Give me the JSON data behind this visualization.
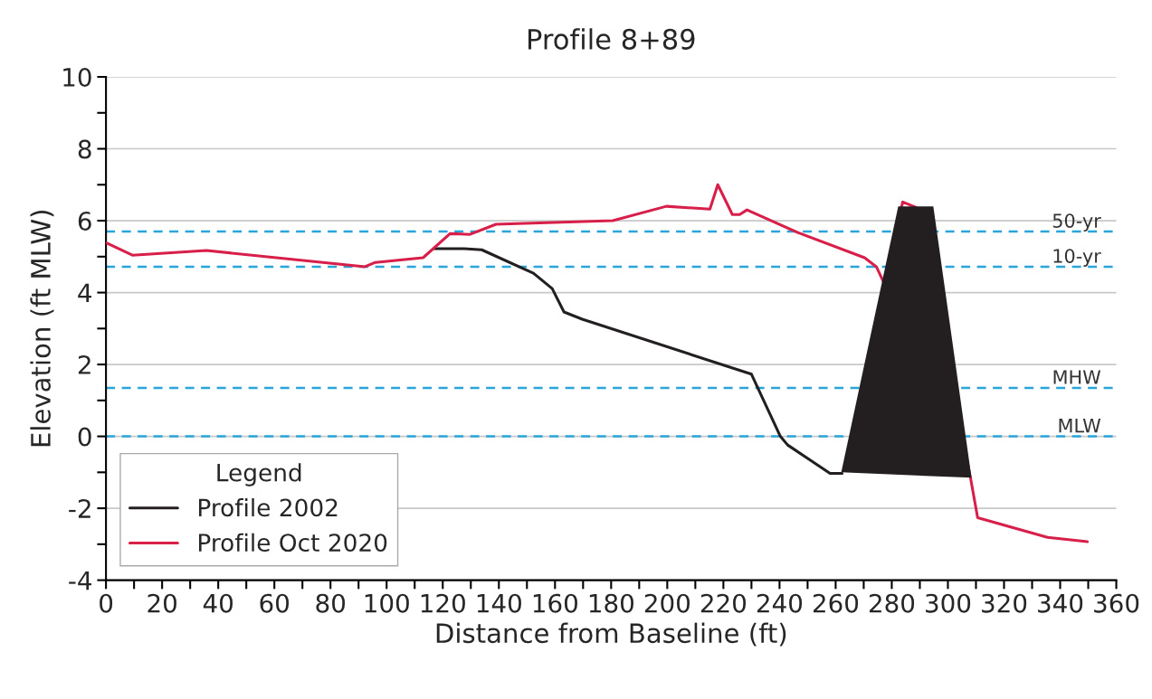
{
  "chart_data": {
    "type": "line",
    "title": "Profile 8+89",
    "xlabel": "Distance from Baseline (ft)",
    "ylabel": "Elevation (ft MLW)",
    "xlim": [
      0,
      360
    ],
    "ylim": [
      -4,
      10
    ],
    "xticks": [
      0,
      {
        "value": 10,
        "label": null
      },
      20,
      {
        "value": 30,
        "label": null
      },
      40,
      {
        "value": 50,
        "label": null
      },
      60,
      {
        "value": 70,
        "label": null
      },
      80,
      {
        "value": 90,
        "label": null
      },
      100,
      {
        "value": 110,
        "label": null
      },
      120,
      {
        "value": 130,
        "label": null
      },
      140,
      {
        "value": 150,
        "label": null
      },
      160,
      {
        "value": 170,
        "label": null
      },
      180,
      {
        "value": 190,
        "label": null
      },
      200,
      {
        "value": 210,
        "label": null
      },
      220,
      {
        "value": 230,
        "label": null
      },
      240,
      {
        "value": 250,
        "label": null
      },
      260,
      {
        "value": 270,
        "label": null
      },
      280,
      {
        "value": 290,
        "label": null
      },
      300,
      {
        "value": 310,
        "label": null
      },
      320,
      {
        "value": 330,
        "label": null
      },
      340,
      {
        "value": 350,
        "label": null
      },
      360
    ],
    "yticks": [
      -4,
      {
        "value": -3,
        "label": null
      },
      -2,
      {
        "value": -1,
        "label": null
      },
      0,
      {
        "value": 1,
        "label": null
      },
      2,
      {
        "value": 3,
        "label": null
      },
      4,
      {
        "value": 5,
        "label": null
      },
      6,
      {
        "value": 7,
        "label": null
      },
      8,
      {
        "value": 9,
        "label": null
      },
      10
    ],
    "grid": "y",
    "legend": "bottom left",
    "legend_title": "Legend",
    "line_style": "solid",
    "marker": "none",
    "series": [
      {
        "name": "Profile 2002",
        "color": "#231f20",
        "x": [
          116.8,
          127.7,
          133.9,
          152.3,
          159,
          163.2,
          169.7,
          230,
          240.3,
          242.9,
          258,
          262.3
        ],
        "values": [
          5.22,
          5.22,
          5.19,
          4.54,
          4.11,
          3.46,
          3.26,
          1.73,
          0.0,
          -0.24,
          -1.03,
          -1.03
        ]
      },
      {
        "name": "Profile Oct 2020",
        "color": "#d81f4a",
        "x": [
          0,
          9.4,
          35.8,
          92.3,
          96,
          113,
          122.6,
          129.7,
          139,
          180.6,
          199.7,
          215.2,
          218,
          223.2,
          225.8,
          228.4,
          246.5,
          270.3,
          274.5,
          277.1,
          283.9,
          288.7,
          308,
          310.6,
          335.5,
          349.7
        ],
        "values": [
          5.39,
          5.04,
          5.17,
          4.72,
          4.84,
          4.97,
          5.64,
          5.62,
          5.9,
          6.0,
          6.4,
          6.32,
          7.0,
          6.17,
          6.17,
          6.3,
          5.67,
          4.97,
          4.72,
          4.29,
          6.52,
          6.37,
          -1.13,
          -2.26,
          -2.81,
          -2.93
        ]
      },
      {
        "color": "#231f20",
        "type": "area",
        "x": [
          262,
          282.3,
          294.8,
          308.4,
          262
        ],
        "values": [
          -1.0,
          6.4,
          6.4,
          -1.15,
          -1.0
        ]
      }
    ],
    "ref_lines": [
      {
        "axis": "y",
        "value": 5.7,
        "label": "50-yr",
        "color": "#2aa5db",
        "line_style": "dashed"
      },
      {
        "axis": "y",
        "value": 4.72,
        "label": "10-yr",
        "color": "#2aa5db",
        "line_style": "dashed"
      },
      {
        "axis": "y",
        "value": 1.35,
        "label": "MHW",
        "color": "#2aa5db",
        "line_style": "dashed"
      },
      {
        "axis": "y",
        "value": 0,
        "label": "MLW",
        "color": "#2aa5db",
        "line_style": "dashed"
      }
    ]
  }
}
